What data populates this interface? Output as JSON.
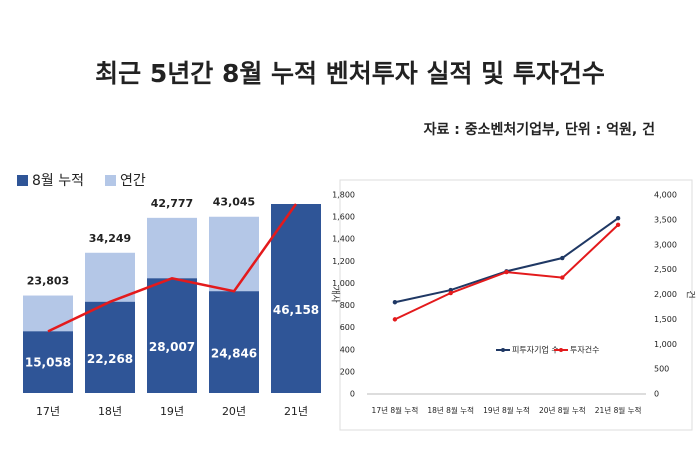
{
  "title": "최근 5년간 8월 누적 벤처투자 실적 및 투자건수",
  "source": "자료 : 중소벤처기업부, 단위 : 억원, 건",
  "chart_data": [
    {
      "type": "bar",
      "categories": [
        "17년",
        "18년",
        "19년",
        "20년",
        "21년"
      ],
      "series": [
        {
          "name": "8월 누적",
          "color": "#2f5597",
          "values": [
            15058,
            22268,
            28007,
            24846,
            46158
          ],
          "value_labels": [
            "15,058",
            "22,268",
            "28,007",
            "24,846",
            "46,158"
          ]
        },
        {
          "name": "연간",
          "color": "#b4c7e7",
          "values": [
            23803,
            34249,
            42777,
            43045,
            null
          ],
          "value_labels": [
            "23,803",
            "34,249",
            "42,777",
            "43,045",
            null
          ]
        }
      ],
      "line_color": "#e31a1c"
    },
    {
      "type": "line",
      "categories": [
        "17년 8월 누적",
        "18년 8월 누적",
        "19년 8월 누적",
        "20년 8월 누적",
        "21년 8월 누적"
      ],
      "ylabel": "개사",
      "y2label": "건",
      "ylim": [
        0,
        1800
      ],
      "yticks": [
        0,
        200,
        400,
        600,
        800,
        {
          "value": 1000,
          "label": "1,000"
        },
        {
          "value": 1200,
          "label": "1,200"
        },
        {
          "value": 1400,
          "label": "1,400"
        },
        {
          "value": 1600,
          "label": "1,600"
        },
        {
          "value": 1800,
          "label": "1,800"
        }
      ],
      "y2lim": [
        0,
        4000
      ],
      "y2ticks": [
        0,
        500,
        {
          "value": 1000,
          "label": "1,000"
        },
        {
          "value": 1500,
          "label": "1,500"
        },
        {
          "value": 2000,
          "label": "2,000"
        },
        {
          "value": 2500,
          "label": "2,500"
        },
        {
          "value": 3000,
          "label": "3,000"
        },
        {
          "value": 3500,
          "label": "3,500"
        },
        {
          "value": 4000,
          "label": "4,000"
        }
      ],
      "series": [
        {
          "name": "피투자기업 수",
          "color": "#1f3864",
          "values": [
            830,
            940,
            1110,
            1230,
            1590
          ]
        },
        {
          "name": "투자건수",
          "color": "#e31a1c",
          "axis": "y2",
          "values": [
            1500,
            2030,
            2450,
            2340,
            3400
          ]
        }
      ]
    }
  ]
}
